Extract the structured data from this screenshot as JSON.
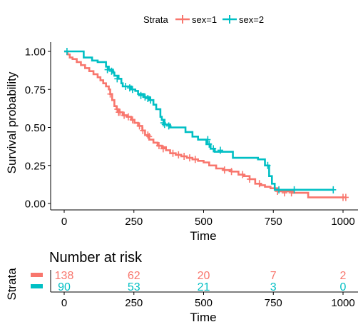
{
  "chart_data": {
    "type": "line",
    "subtype": "kaplan-meier",
    "legend": {
      "title": "Strata",
      "position": "top"
    },
    "xlabel": "Time",
    "ylabel": "Survival probability",
    "xlim": [
      -20,
      1030
    ],
    "ylim": [
      0,
      1
    ],
    "xticks": [
      0,
      250,
      500,
      750,
      1000
    ],
    "yticks": [
      0.0,
      0.25,
      0.5,
      0.75,
      1.0
    ],
    "xtick_labels": [
      "0",
      "250",
      "500",
      "750",
      "1000"
    ],
    "ytick_labels": [
      "0.00",
      "0.25",
      "0.50",
      "0.75",
      "1.00"
    ],
    "grid": false,
    "series": [
      {
        "name": "sex=1",
        "color": "#F8766D",
        "steps": [
          [
            0,
            1.0
          ],
          [
            12,
            0.98
          ],
          [
            20,
            0.96
          ],
          [
            30,
            0.95
          ],
          [
            45,
            0.93
          ],
          [
            60,
            0.91
          ],
          [
            75,
            0.89
          ],
          [
            90,
            0.87
          ],
          [
            105,
            0.85
          ],
          [
            120,
            0.83
          ],
          [
            130,
            0.81
          ],
          [
            140,
            0.79
          ],
          [
            150,
            0.77
          ],
          [
            160,
            0.75
          ],
          [
            165,
            0.72
          ],
          [
            172,
            0.68
          ],
          [
            180,
            0.64
          ],
          [
            188,
            0.62
          ],
          [
            195,
            0.6
          ],
          [
            210,
            0.58
          ],
          [
            225,
            0.57
          ],
          [
            240,
            0.55
          ],
          [
            252,
            0.53
          ],
          [
            265,
            0.51
          ],
          [
            280,
            0.48
          ],
          [
            290,
            0.45
          ],
          [
            305,
            0.42
          ],
          [
            320,
            0.4
          ],
          [
            335,
            0.38
          ],
          [
            350,
            0.37
          ],
          [
            365,
            0.35
          ],
          [
            380,
            0.33
          ],
          [
            400,
            0.32
          ],
          [
            420,
            0.31
          ],
          [
            440,
            0.3
          ],
          [
            460,
            0.29
          ],
          [
            480,
            0.28
          ],
          [
            500,
            0.27
          ],
          [
            520,
            0.25
          ],
          [
            545,
            0.23
          ],
          [
            570,
            0.22
          ],
          [
            600,
            0.21
          ],
          [
            625,
            0.19
          ],
          [
            645,
            0.18
          ],
          [
            665,
            0.16
          ],
          [
            685,
            0.13
          ],
          [
            705,
            0.12
          ],
          [
            720,
            0.11
          ],
          [
            740,
            0.1
          ],
          [
            765,
            0.08
          ],
          [
            820,
            0.07
          ],
          [
            875,
            0.04
          ],
          [
            1010,
            0.04
          ]
        ],
        "censored": [
          [
            165,
            0.72
          ],
          [
            190,
            0.62
          ],
          [
            195,
            0.6
          ],
          [
            200,
            0.6
          ],
          [
            215,
            0.58
          ],
          [
            230,
            0.57
          ],
          [
            245,
            0.55
          ],
          [
            270,
            0.51
          ],
          [
            282,
            0.48
          ],
          [
            300,
            0.45
          ],
          [
            305,
            0.44
          ],
          [
            340,
            0.38
          ],
          [
            355,
            0.36
          ],
          [
            390,
            0.33
          ],
          [
            410,
            0.32
          ],
          [
            430,
            0.31
          ],
          [
            450,
            0.3
          ],
          [
            470,
            0.29
          ],
          [
            575,
            0.22
          ],
          [
            600,
            0.21
          ],
          [
            640,
            0.19
          ],
          [
            665,
            0.16
          ],
          [
            700,
            0.13
          ],
          [
            765,
            0.08
          ],
          [
            790,
            0.07
          ],
          [
            815,
            0.07
          ],
          [
            1000,
            0.04
          ],
          [
            1010,
            0.04
          ]
        ]
      },
      {
        "name": "sex=2",
        "color": "#00BFC4",
        "steps": [
          [
            0,
            1.0
          ],
          [
            70,
            0.96
          ],
          [
            100,
            0.94
          ],
          [
            120,
            0.93
          ],
          [
            150,
            0.9
          ],
          [
            160,
            0.88
          ],
          [
            175,
            0.86
          ],
          [
            180,
            0.84
          ],
          [
            195,
            0.82
          ],
          [
            205,
            0.79
          ],
          [
            210,
            0.77
          ],
          [
            240,
            0.75
          ],
          [
            255,
            0.74
          ],
          [
            265,
            0.72
          ],
          [
            285,
            0.7
          ],
          [
            305,
            0.68
          ],
          [
            320,
            0.65
          ],
          [
            330,
            0.62
          ],
          [
            345,
            0.57
          ],
          [
            350,
            0.55
          ],
          [
            360,
            0.52
          ],
          [
            380,
            0.5
          ],
          [
            435,
            0.47
          ],
          [
            460,
            0.44
          ],
          [
            480,
            0.42
          ],
          [
            510,
            0.39
          ],
          [
            525,
            0.36
          ],
          [
            540,
            0.34
          ],
          [
            580,
            0.34
          ],
          [
            605,
            0.3
          ],
          [
            695,
            0.29
          ],
          [
            720,
            0.25
          ],
          [
            735,
            0.18
          ],
          [
            745,
            0.13
          ],
          [
            755,
            0.09
          ],
          [
            965,
            0.09
          ]
        ],
        "censored": [
          [
            10,
            1.0
          ],
          [
            155,
            0.88
          ],
          [
            170,
            0.87
          ],
          [
            190,
            0.82
          ],
          [
            220,
            0.77
          ],
          [
            235,
            0.76
          ],
          [
            245,
            0.75
          ],
          [
            275,
            0.71
          ],
          [
            290,
            0.7
          ],
          [
            300,
            0.69
          ],
          [
            310,
            0.68
          ],
          [
            355,
            0.53
          ],
          [
            360,
            0.52
          ],
          [
            375,
            0.51
          ],
          [
            515,
            0.42
          ],
          [
            520,
            0.39
          ],
          [
            535,
            0.36
          ],
          [
            560,
            0.35
          ],
          [
            730,
            0.25
          ],
          [
            770,
            0.09
          ],
          [
            825,
            0.09
          ],
          [
            965,
            0.09
          ]
        ]
      }
    ],
    "risk_table": {
      "title": "Number at risk",
      "ylabel": "Strata",
      "xlabel": "Time",
      "times": [
        0,
        250,
        500,
        750,
        1000
      ],
      "time_labels": [
        "0",
        "250",
        "500",
        "750",
        "1000"
      ],
      "rows": [
        {
          "name": "sex=1",
          "color": "#F8766D",
          "counts": [
            "138",
            "62",
            "20",
            "7",
            "2"
          ]
        },
        {
          "name": "sex=2",
          "color": "#00BFC4",
          "counts": [
            "90",
            "53",
            "21",
            "3",
            "0"
          ]
        }
      ]
    }
  }
}
